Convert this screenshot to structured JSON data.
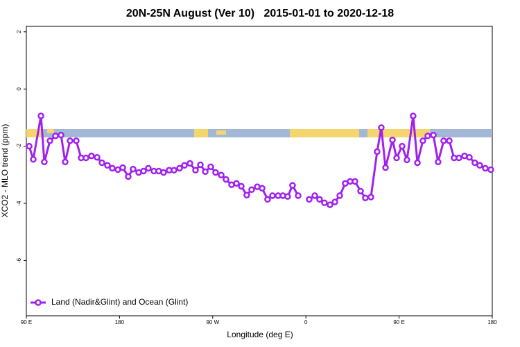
{
  "chart_data": {
    "type": "line",
    "title": "20N-25N August (Ver 10)   2015-01-01 to 2020-12-18",
    "x_label": "Longitude (deg E)",
    "y_label": "XCO2 - MLO trend (ppm)",
    "xlim": [
      90,
      540
    ],
    "ylim": [
      -7.93,
      2.19
    ],
    "xticks": [
      {
        "value": 90,
        "label": "90 E"
      },
      180,
      {
        "value": 270,
        "label": "90 W"
      },
      {
        "value": 360,
        "label": "0"
      },
      {
        "value": 450,
        "label": "90 E"
      },
      {
        "value": 540,
        "label": "180"
      }
    ],
    "yticks": [
      2,
      0,
      -2,
      -4,
      -6
    ],
    "legend": "bottom-left",
    "x": [
      92.7,
      96.7,
      104.1,
      107.4,
      112.8,
      118.1,
      123.5,
      127.5,
      132.2,
      138.2,
      142.9,
      147.6,
      152.9,
      158.3,
      163.0,
      168.3,
      173.0,
      178.4,
      183.1,
      188.4,
      193.1,
      198.5,
      203.2,
      207.8,
      213.2,
      217.9,
      222.6,
      227.9,
      232.6,
      238.0,
      242.7,
      248.0,
      253.4,
      258.1,
      262.8,
      268.1,
      272.8,
      278.2,
      282.8,
      288.2,
      292.9,
      297.6,
      302.9,
      307.6,
      313.0,
      317.7,
      323.0,
      327.7,
      333.1,
      337.8,
      342.4,
      347.1,
      352.5,
      357.8,
      363.2,
      368.6,
      373.2,
      377.9,
      383.3,
      388.0,
      392.7,
      398.0,
      402.7,
      407.4,
      412.8,
      417.4,
      422.8,
      428.8,
      432.8,
      436.9,
      443.6,
      447.6,
      452.9,
      457.6,
      463.6,
      467.7,
      473.0,
      477.7,
      483.1,
      487.7,
      493.1,
      498.5,
      503.1,
      507.8,
      513.2,
      517.9,
      523.2,
      527.9,
      533.3,
      538.6
    ],
    "series": [
      {
        "name": "Land (Nadir&Glint) and Ocean (Glint)",
        "color": "#a020f0",
        "values": [
          -2.0,
          -2.46,
          -0.94,
          -2.55,
          -1.81,
          -1.64,
          -1.61,
          -2.55,
          -1.81,
          -1.81,
          -2.41,
          -2.41,
          -2.34,
          -2.39,
          -2.58,
          -2.67,
          -2.77,
          -2.82,
          -2.75,
          -3.06,
          -2.8,
          -2.92,
          -2.87,
          -2.77,
          -2.87,
          -2.87,
          -2.92,
          -2.84,
          -2.84,
          -2.77,
          -2.67,
          -2.6,
          -2.84,
          -2.65,
          -2.89,
          -2.72,
          -2.92,
          -3.01,
          -3.16,
          -3.35,
          -3.3,
          -3.4,
          -3.71,
          -3.52,
          -3.42,
          -3.47,
          -3.86,
          -3.73,
          -3.73,
          -3.73,
          -3.76,
          -3.37,
          -3.73,
          null,
          -3.86,
          -3.73,
          -3.86,
          -3.98,
          -4.05,
          -3.95,
          -3.73,
          -3.3,
          -3.23,
          -3.23,
          -3.57,
          -3.81,
          -3.78,
          -2.19,
          -1.35,
          -2.75,
          -1.78,
          -2.41,
          -2.0,
          -2.48,
          -0.94,
          -2.58,
          -1.81,
          -1.64,
          -1.61,
          -2.55,
          -1.81,
          -1.81,
          -2.41,
          -2.41,
          -2.34,
          -2.39,
          -2.58,
          -2.67,
          -2.77,
          -2.82
        ]
      }
    ]
  }
}
